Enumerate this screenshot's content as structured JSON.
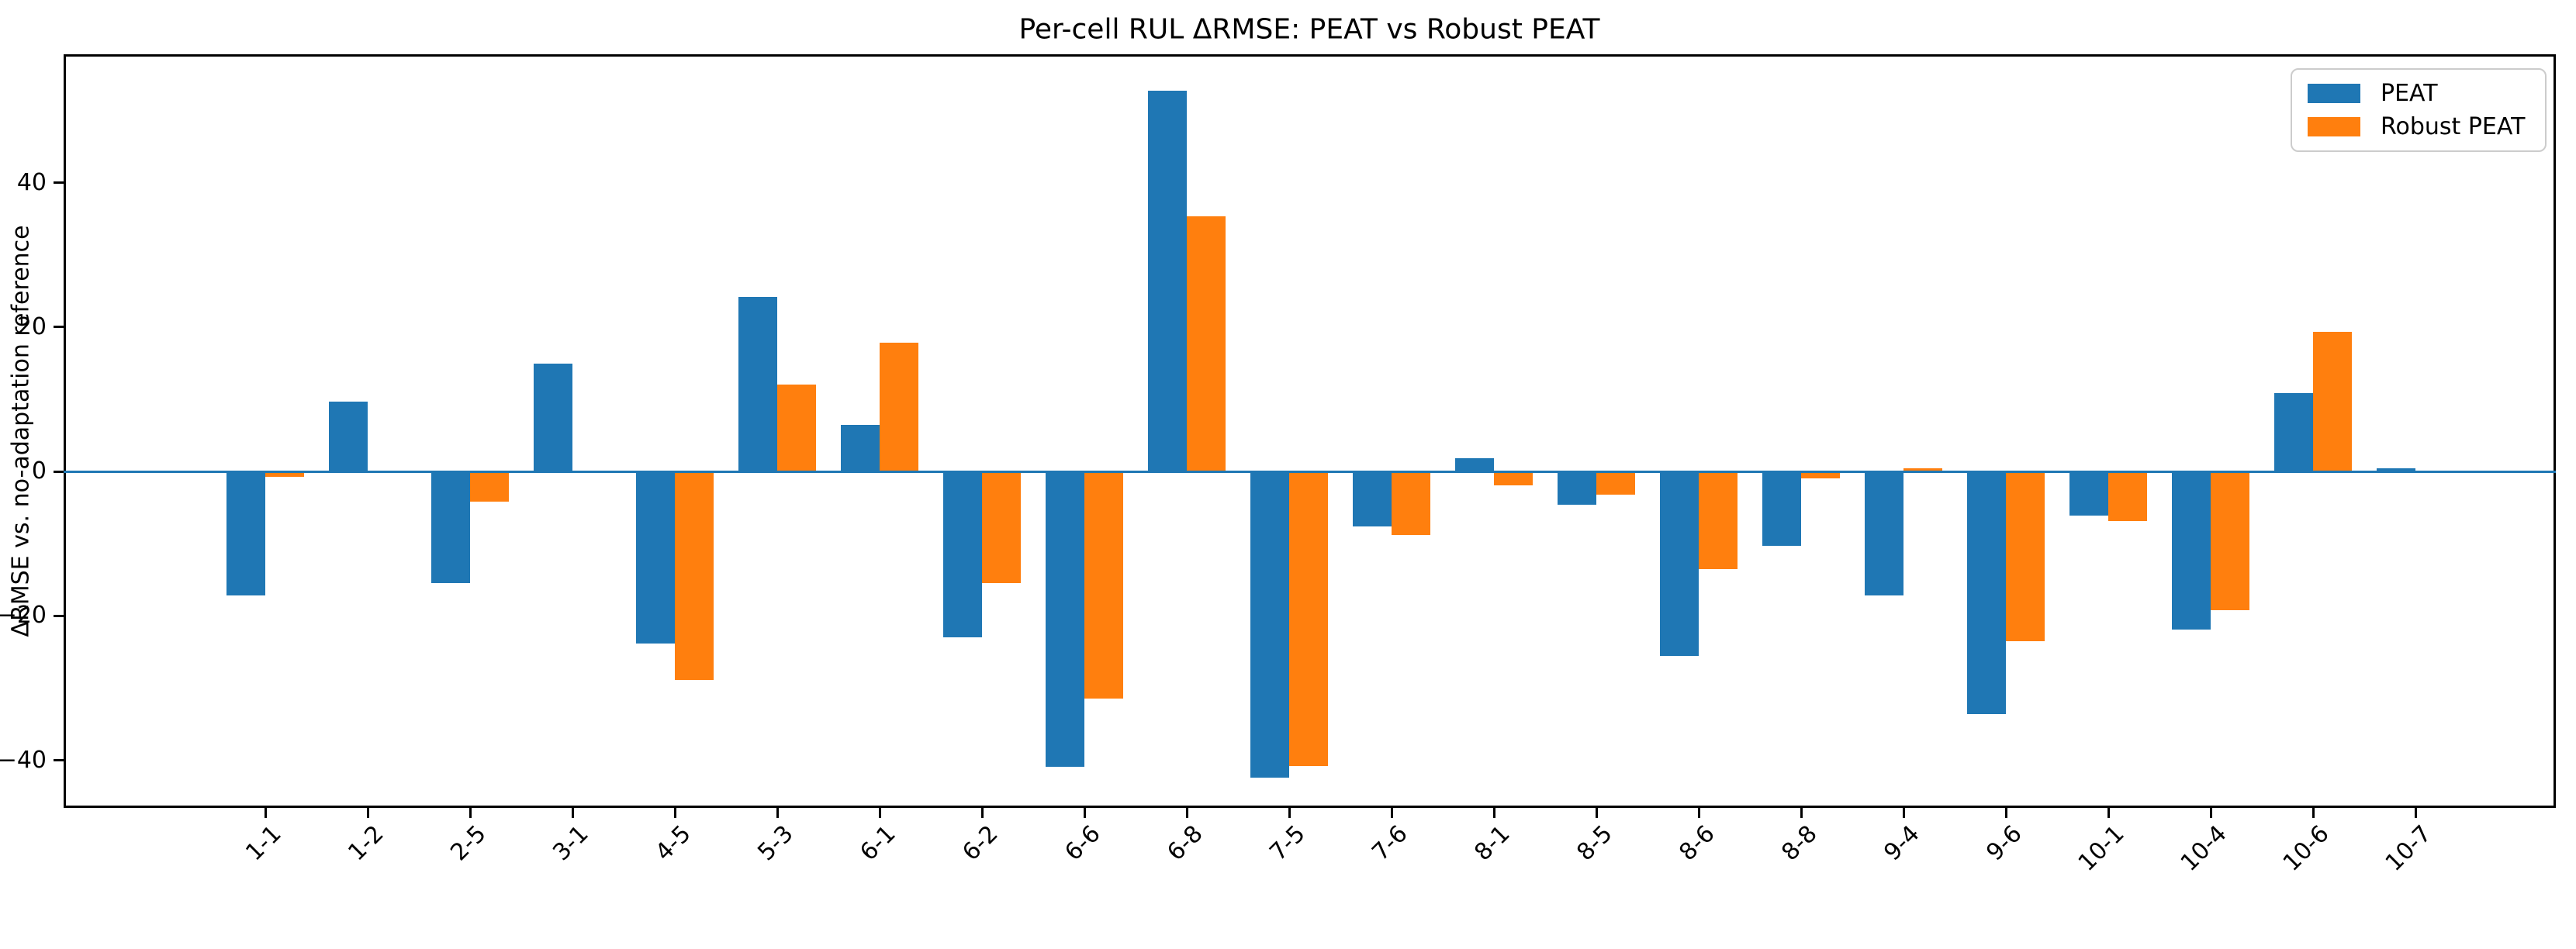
{
  "figure": {
    "title": "Per-cell RUL ΔRMSE: PEAT vs Robust PEAT"
  },
  "chart_data": {
    "type": "bar",
    "title": "Per-cell RUL ΔRMSE: PEAT vs Robust PEAT",
    "xlabel": "",
    "ylabel": "ΔRMSE vs. no-adaptation reference",
    "categories": [
      "1-1",
      "1-2",
      "2-5",
      "3-1",
      "4-5",
      "5-3",
      "6-1",
      "6-2",
      "6-6",
      "6-8",
      "7-5",
      "7-6",
      "8-1",
      "8-5",
      "8-6",
      "8-8",
      "9-4",
      "9-6",
      "10-1",
      "10-4",
      "10-6",
      "10-7"
    ],
    "series": [
      {
        "name": "PEAT",
        "color": "#1f77b4",
        "values": [
          -17.2,
          9.7,
          -15.4,
          14.9,
          -23.8,
          24.2,
          6.5,
          -23.0,
          -40.9,
          52.8,
          -42.4,
          -7.6,
          1.8,
          -4.6,
          -25.5,
          -10.3,
          -17.2,
          -33.6,
          -6.1,
          -21.9,
          10.9,
          0.4
        ]
      },
      {
        "name": "Robust PEAT",
        "color": "#ff7f0e",
        "values": [
          -0.7,
          0.0,
          -4.2,
          0.0,
          -28.9,
          12.0,
          17.8,
          -15.5,
          -31.5,
          35.4,
          -40.8,
          -8.8,
          -1.9,
          -3.2,
          -13.5,
          -1.0,
          0.4,
          -23.5,
          -6.9,
          -19.2,
          19.3,
          0.0
        ]
      }
    ],
    "yticks": [
      -40,
      -20,
      0,
      20,
      40
    ],
    "ylim": [
      -46.6,
      57.8
    ],
    "grid": false,
    "zero_line_color": "#1f77b4",
    "legend_position": "upper right",
    "xtick_rotation_deg": 45
  },
  "legend": {
    "items": [
      {
        "label": "PEAT",
        "color": "#1f77b4"
      },
      {
        "label": "Robust PEAT",
        "color": "#ff7f0e"
      }
    ]
  }
}
